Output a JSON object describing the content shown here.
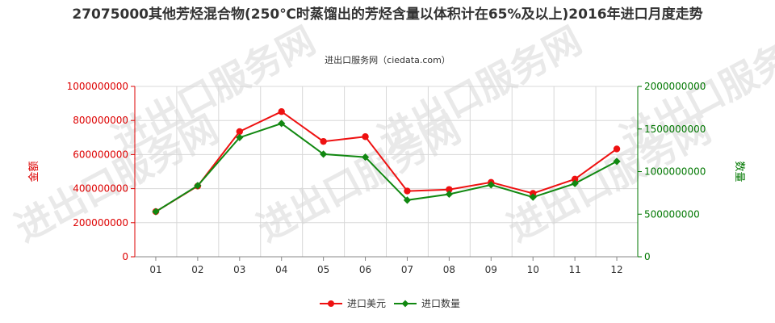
{
  "chart_data": {
    "type": "line",
    "title": "27075000其他芳烃混合物(250℃时蒸馏出的芳烃含量以体积计在65%及以上)2016年进口月度走势",
    "subtitle": "进出口服务网（ciedata.com）",
    "watermark": "进出口服务网",
    "categories": [
      "01",
      "02",
      "03",
      "04",
      "05",
      "06",
      "07",
      "08",
      "09",
      "10",
      "11",
      "12"
    ],
    "y_left": {
      "label": "金额",
      "lim": [
        0,
        1000000000
      ],
      "ticks": [
        "0",
        "200000000",
        "400000000",
        "600000000",
        "800000000",
        "1000000000"
      ],
      "color": "#dd0000"
    },
    "y_right": {
      "label": "数量",
      "lim": [
        0,
        2000000000
      ],
      "ticks": [
        "0",
        "500000000",
        "1000000000",
        "1500000000",
        "2000000000"
      ],
      "color": "#007700"
    },
    "series": [
      {
        "name": "进口美元",
        "axis": "left",
        "color": "#ee1111",
        "values": [
          265000000,
          415000000,
          735000000,
          852000000,
          677000000,
          705000000,
          386000000,
          395000000,
          437000000,
          372000000,
          456000000,
          633000000
        ]
      },
      {
        "name": "进口数量",
        "axis": "right",
        "color": "#118811",
        "values": [
          530000000,
          835000000,
          1400000000,
          1565000000,
          1205000000,
          1170000000,
          665000000,
          735000000,
          845000000,
          700000000,
          860000000,
          1120000000
        ]
      }
    ],
    "grid": true,
    "legend": "bottom-center"
  }
}
